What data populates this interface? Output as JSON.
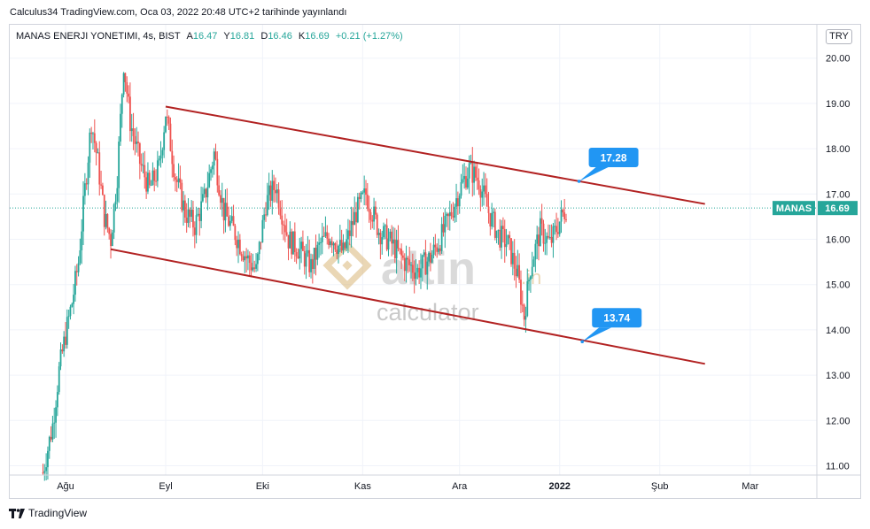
{
  "publication": "Calculus34 TradingView.com, Oca 03, 2022 20:48 UTC+2 tarihinde yayınlandı",
  "legend": {
    "symbol": "MANAS ENERJI YONETIMI, 4s, BIST",
    "open_label": "A",
    "open": "16.47",
    "high_label": "Y",
    "high": "16.81",
    "low_label": "D",
    "low": "16.46",
    "close_label": "K",
    "close": "16.69",
    "change": "+0.21 (+1.27%)"
  },
  "currency": "TRY",
  "price_tag": {
    "symbol": "MANAS",
    "value": "16.69",
    "price": 16.69
  },
  "watermark": {
    "brand": "altin",
    "suffix": ".in",
    "sub": "calculator"
  },
  "footer": "TradingView",
  "colors": {
    "up": "#26a69a",
    "down": "#ef5350",
    "channel": "#b22222",
    "callout": "#2196f3",
    "price_line": "#26a69a"
  },
  "chart_data": {
    "type": "candlestick",
    "title": "MANAS ENERJI YONETIMI, 4s, BIST",
    "x_ticks": [
      "Ağu",
      "Eyl",
      "Eki",
      "Kas",
      "Ara",
      "2022",
      "Şub",
      "Mar"
    ],
    "x_tick_dates": [
      "2021-08-01",
      "2021-09-01",
      "2021-10-01",
      "2021-11-01",
      "2021-12-01",
      "2022-01-01",
      "2022-02-01",
      "2022-03-01"
    ],
    "y_ticks": [
      "20.00",
      "19.00",
      "18.00",
      "17.00",
      "16.00",
      "15.00",
      "14.00",
      "13.00",
      "12.00",
      "11.00"
    ],
    "ylim": [
      10.8,
      20.2
    ],
    "grid": true,
    "current_price": 16.69,
    "channel": {
      "upper": {
        "start": [
          "2021-09-01",
          18.93
        ],
        "end": [
          "2022-02-15",
          16.78
        ]
      },
      "lower": {
        "start": [
          "2021-08-15",
          15.78
        ],
        "end": [
          "2022-02-15",
          13.25
        ]
      }
    },
    "annotations": [
      {
        "text": "17.28",
        "date": "2022-01-07",
        "price": 17.28
      },
      {
        "text": "13.74",
        "date": "2022-01-08",
        "price": 13.74
      }
    ],
    "ohlc_path": [
      [
        "2021-07-25",
        10.85
      ],
      [
        "2021-07-28",
        11.9
      ],
      [
        "2021-07-30",
        13.1
      ],
      [
        "2021-08-01",
        13.9
      ],
      [
        "2021-08-03",
        14.6
      ],
      [
        "2021-08-05",
        15.5
      ],
      [
        "2021-08-07",
        17.1
      ],
      [
        "2021-08-09",
        18.6
      ],
      [
        "2021-08-11",
        17.7
      ],
      [
        "2021-08-13",
        16.5
      ],
      [
        "2021-08-15",
        16.0
      ],
      [
        "2021-08-17",
        17.4
      ],
      [
        "2021-08-19",
        19.9
      ],
      [
        "2021-08-21",
        18.6
      ],
      [
        "2021-08-24",
        17.7
      ],
      [
        "2021-08-27",
        17.1
      ],
      [
        "2021-08-30",
        17.6
      ],
      [
        "2021-09-01",
        18.8
      ],
      [
        "2021-09-04",
        17.4
      ],
      [
        "2021-09-07",
        16.6
      ],
      [
        "2021-09-10",
        16.3
      ],
      [
        "2021-09-13",
        16.9
      ],
      [
        "2021-09-16",
        17.9
      ],
      [
        "2021-09-19",
        16.6
      ],
      [
        "2021-09-22",
        16.2
      ],
      [
        "2021-09-26",
        15.6
      ],
      [
        "2021-09-29",
        15.3
      ],
      [
        "2021-10-02",
        16.8
      ],
      [
        "2021-10-05",
        17.2
      ],
      [
        "2021-10-09",
        16.0
      ],
      [
        "2021-10-12",
        15.8
      ],
      [
        "2021-10-16",
        15.4
      ],
      [
        "2021-10-19",
        15.9
      ],
      [
        "2021-10-22",
        16.1
      ],
      [
        "2021-10-26",
        15.7
      ],
      [
        "2021-10-30",
        16.6
      ],
      [
        "2021-11-02",
        17.0
      ],
      [
        "2021-11-06",
        16.2
      ],
      [
        "2021-11-10",
        15.9
      ],
      [
        "2021-11-14",
        15.5
      ],
      [
        "2021-11-18",
        15.3
      ],
      [
        "2021-11-22",
        15.6
      ],
      [
        "2021-11-25",
        16.0
      ],
      [
        "2021-11-28",
        16.5
      ],
      [
        "2021-12-01",
        17.1
      ],
      [
        "2021-12-04",
        17.55
      ],
      [
        "2021-12-07",
        17.3
      ],
      [
        "2021-12-10",
        16.6
      ],
      [
        "2021-12-13",
        16.1
      ],
      [
        "2021-12-16",
        15.9
      ],
      [
        "2021-12-19",
        15.2
      ],
      [
        "2021-12-21",
        14.3
      ],
      [
        "2021-12-23",
        15.4
      ],
      [
        "2021-12-26",
        16.2
      ],
      [
        "2021-12-29",
        15.9
      ],
      [
        "2022-01-01",
        16.4
      ],
      [
        "2022-01-03",
        16.69
      ]
    ]
  }
}
